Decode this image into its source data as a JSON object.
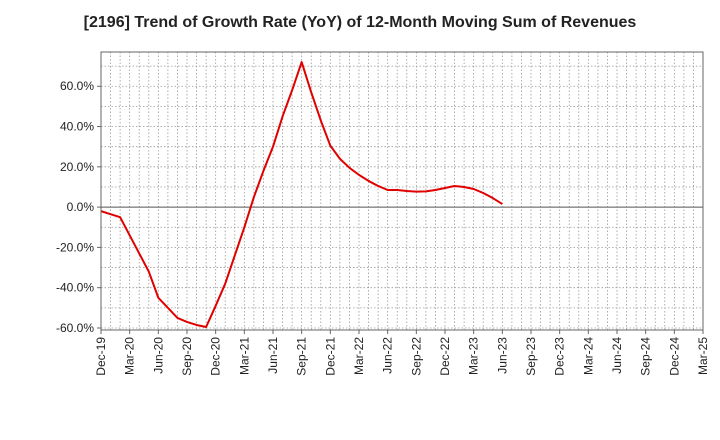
{
  "chart_data": {
    "type": "line",
    "title": "[2196]  Trend of Growth Rate (YoY) of 12-Month Moving Sum of Revenues",
    "xlabel": "",
    "ylabel": "",
    "x_tick_labels": [
      "Dec-19",
      "Mar-20",
      "Jun-20",
      "Sep-20",
      "Dec-20",
      "Mar-21",
      "Jun-21",
      "Sep-21",
      "Dec-21",
      "Mar-22",
      "Jun-22",
      "Sep-22",
      "Dec-22",
      "Mar-23",
      "Jun-23",
      "Sep-23",
      "Dec-23",
      "Mar-24",
      "Jun-24",
      "Sep-24",
      "Dec-24",
      "Mar-25"
    ],
    "y_ticks": [
      -60,
      -40,
      -20,
      0,
      20,
      40,
      60
    ],
    "y_tick_labels": [
      "-60.0%",
      "-40.0%",
      "-20.0%",
      "0.0%",
      "20.0%",
      "40.0%",
      "60.0%"
    ],
    "ylim": [
      -61,
      77
    ],
    "grid": true,
    "zero_line": true,
    "colors": {
      "line": "#e00000",
      "grid": "#999999",
      "axis": "#666666",
      "zero": "#555555"
    },
    "series": [
      {
        "values": [
          [
            0,
            -2.0
          ],
          [
            1,
            -3.5
          ],
          [
            2,
            -5.0
          ],
          [
            3,
            -14.0
          ],
          [
            4,
            -23.0
          ],
          [
            5,
            -32.0
          ],
          [
            6,
            -45.0
          ],
          [
            7,
            -50.0
          ],
          [
            8,
            -55.0
          ],
          [
            9,
            -57.0
          ],
          [
            10,
            -58.5
          ],
          [
            11,
            -59.5
          ],
          [
            12,
            -49.0
          ],
          [
            13,
            -38.0
          ],
          [
            14,
            -24.0
          ],
          [
            15,
            -10.0
          ],
          [
            16,
            5.0
          ],
          [
            17,
            18.0
          ],
          [
            18,
            30.0
          ],
          [
            19,
            45.0
          ],
          [
            20,
            58.0
          ],
          [
            21,
            72.0
          ],
          [
            22,
            57.0
          ],
          [
            23,
            43.0
          ],
          [
            24,
            30.5
          ],
          [
            25,
            24.0
          ],
          [
            26,
            19.5
          ],
          [
            27,
            16.0
          ],
          [
            28,
            13.0
          ],
          [
            29,
            10.5
          ],
          [
            30,
            8.5
          ],
          [
            31,
            8.5
          ],
          [
            32,
            8.0
          ],
          [
            33,
            7.7
          ],
          [
            34,
            7.8
          ],
          [
            35,
            8.5
          ],
          [
            36,
            9.5
          ],
          [
            37,
            10.5
          ],
          [
            38,
            10.0
          ],
          [
            39,
            9.0
          ],
          [
            40,
            7.0
          ],
          [
            41,
            4.5
          ],
          [
            42,
            1.5
          ]
        ]
      }
    ]
  }
}
